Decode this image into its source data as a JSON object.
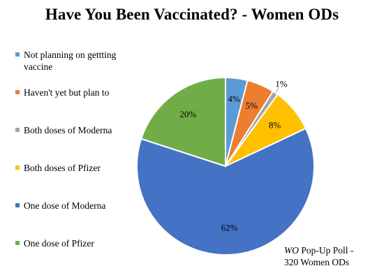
{
  "chart_data": {
    "type": "pie",
    "title": "Have You Been Vaccinated? - Women ODs",
    "legend_placement": "left",
    "categories": [
      "Not planning on gettting vaccine",
      "Haven't yet but plan to",
      "Both doses of Moderna",
      "Both doses of Pfizer",
      "One dose of Moderna",
      "One dose of Pfizer"
    ],
    "values": [
      4,
      5,
      1,
      8,
      62,
      20
    ],
    "labels": [
      "4%",
      "5%",
      "1%",
      "8%",
      "62%",
      "20%"
    ],
    "colors": [
      "#5B9BD5",
      "#ED7D31",
      "#A5A5A5",
      "#FFC000",
      "#4472C4",
      "#70AD47"
    ]
  },
  "note": {
    "publication": "WO",
    "line1_rest": " Pop-Up Poll -",
    "line2": "320 Women ODs"
  }
}
